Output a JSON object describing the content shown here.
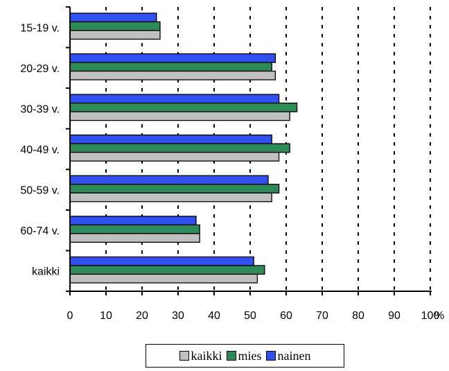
{
  "chart_data": {
    "type": "bar",
    "orientation": "horizontal",
    "categories": [
      "15-19 v.",
      "20-29 v.",
      "30-39 v.",
      "40-49 v.",
      "50-59 v.",
      "60-74 v.",
      "kaikki"
    ],
    "series": [
      {
        "name": "nainen",
        "color": "#3050F0",
        "values": [
          24,
          57,
          58,
          56,
          55,
          35,
          51
        ]
      },
      {
        "name": "mies",
        "color": "#2E8B57",
        "values": [
          25,
          56,
          63,
          61,
          58,
          36,
          54
        ]
      },
      {
        "name": "kaikki",
        "color": "#C0C0C0",
        "values": [
          25,
          57,
          61,
          58,
          56,
          36,
          52
        ]
      }
    ],
    "x_ticks": [
      "0",
      "10",
      "20",
      "30",
      "40",
      "50",
      "60",
      "70",
      "80",
      "90",
      "100"
    ],
    "xlim": [
      0,
      100
    ],
    "unit_label": "%",
    "grid": "vertical-dashed",
    "legend": {
      "placement": "bottom",
      "entries": [
        {
          "label": "kaikki",
          "color": "#C0C0C0"
        },
        {
          "label": "mies",
          "color": "#2E8B57"
        },
        {
          "label": "nainen",
          "color": "#3050F0"
        }
      ]
    }
  }
}
